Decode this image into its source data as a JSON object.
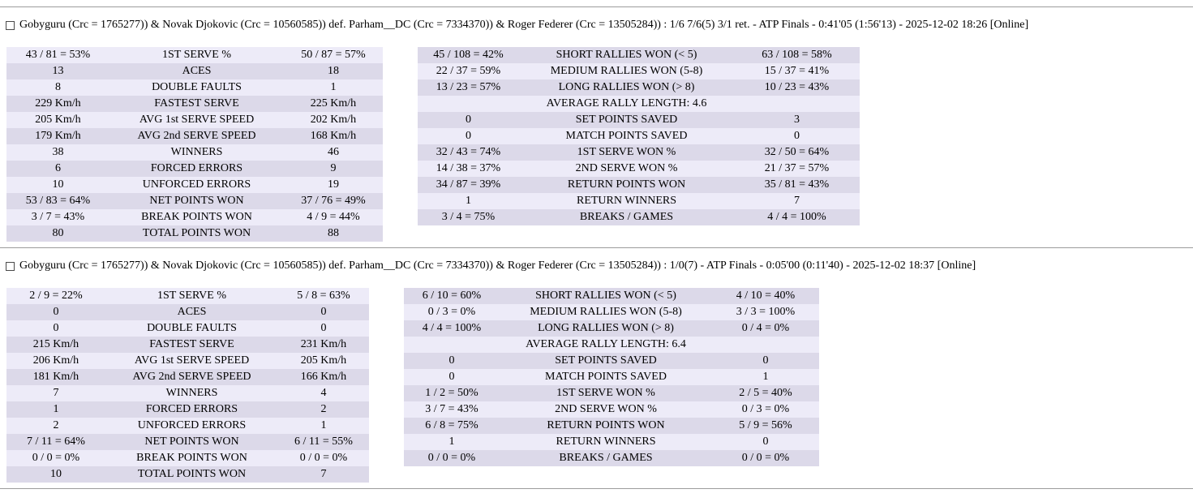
{
  "page": {
    "background": "#ffffff",
    "separator_color": "#9c9c9c",
    "row_light": "#edebf8",
    "row_dark": "#dcd9e9",
    "text_color": "#000000"
  },
  "matches": [
    {
      "header": "Gobyguru (Crc = 1765277)) & Novak Djokovic (Crc = 10560585)) def. Parham__DC (Crc = 7334370)) & Roger Federer (Crc = 13505284)) : 1/6 7/6(5) 3/1 ret. - ATP Finals - 0:41'05 (1:56'13) - 2025-12-02 18:26 [Online]",
      "checkbox_checked": false,
      "serve_table": [
        [
          "43 / 81 = 53%",
          "1ST SERVE %",
          "50 / 87 = 57%"
        ],
        [
          "13",
          "ACES",
          "18"
        ],
        [
          "8",
          "DOUBLE FAULTS",
          "1"
        ],
        [
          "229 Km/h",
          "FASTEST SERVE",
          "225 Km/h"
        ],
        [
          "205 Km/h",
          "AVG 1st SERVE SPEED",
          "202 Km/h"
        ],
        [
          "179 Km/h",
          "AVG 2nd SERVE SPEED",
          "168 Km/h"
        ],
        [
          "38",
          "WINNERS",
          "46"
        ],
        [
          "6",
          "FORCED ERRORS",
          "9"
        ],
        [
          "10",
          "UNFORCED ERRORS",
          "19"
        ],
        [
          "53 / 83 = 64%",
          "NET POINTS WON",
          "37 / 76 = 49%"
        ],
        [
          "3 / 7 = 43%",
          "BREAK POINTS WON",
          "4 / 9 = 44%"
        ],
        [
          "80",
          "TOTAL POINTS WON",
          "88"
        ]
      ],
      "rally_table": [
        [
          "45 / 108 = 42%",
          "SHORT RALLIES WON (< 5)",
          "63 / 108 = 58%"
        ],
        [
          "22 / 37 = 59%",
          "MEDIUM RALLIES WON (5-8)",
          "15 / 37 = 41%"
        ],
        [
          "13 / 23 = 57%",
          "LONG RALLIES WON (> 8)",
          "10 / 23 = 43%"
        ],
        [
          "",
          "AVERAGE RALLY LENGTH: 4.6",
          ""
        ],
        [
          "0",
          "SET POINTS SAVED",
          "3"
        ],
        [
          "0",
          "MATCH POINTS SAVED",
          "0"
        ],
        [
          "32 / 43 = 74%",
          "1ST SERVE WON %",
          "32 / 50 = 64%"
        ],
        [
          "14 / 38 = 37%",
          "2ND SERVE WON %",
          "21 / 37 = 57%"
        ],
        [
          "34 / 87 = 39%",
          "RETURN POINTS WON",
          "35 / 81 = 43%"
        ],
        [
          "1",
          "RETURN WINNERS",
          "7"
        ],
        [
          "3 / 4 = 75%",
          "BREAKS / GAMES",
          "4 / 4 = 100%"
        ]
      ]
    },
    {
      "header": "Gobyguru (Crc = 1765277)) & Novak Djokovic (Crc = 10560585)) def. Parham__DC (Crc = 7334370)) & Roger Federer (Crc = 13505284)) : 1/0(7) - ATP Finals - 0:05'00 (0:11'40) - 2025-12-02 18:37 [Online]",
      "checkbox_checked": false,
      "serve_table": [
        [
          "2 / 9 = 22%",
          "1ST SERVE %",
          "5 / 8 = 63%"
        ],
        [
          "0",
          "ACES",
          "0"
        ],
        [
          "0",
          "DOUBLE FAULTS",
          "0"
        ],
        [
          "215 Km/h",
          "FASTEST SERVE",
          "231 Km/h"
        ],
        [
          "206 Km/h",
          "AVG 1st SERVE SPEED",
          "205 Km/h"
        ],
        [
          "181 Km/h",
          "AVG 2nd SERVE SPEED",
          "166 Km/h"
        ],
        [
          "7",
          "WINNERS",
          "4"
        ],
        [
          "1",
          "FORCED ERRORS",
          "2"
        ],
        [
          "2",
          "UNFORCED ERRORS",
          "1"
        ],
        [
          "7 / 11 = 64%",
          "NET POINTS WON",
          "6 / 11 = 55%"
        ],
        [
          "0 / 0 = 0%",
          "BREAK POINTS WON",
          "0 / 0 = 0%"
        ],
        [
          "10",
          "TOTAL POINTS WON",
          "7"
        ]
      ],
      "rally_table": [
        [
          "6 / 10 = 60%",
          "SHORT RALLIES WON (< 5)",
          "4 / 10 = 40%"
        ],
        [
          "0 / 3 = 0%",
          "MEDIUM RALLIES WON (5-8)",
          "3 / 3 = 100%"
        ],
        [
          "4 / 4 = 100%",
          "LONG RALLIES WON (> 8)",
          "0 / 4 = 0%"
        ],
        [
          "",
          "AVERAGE RALLY LENGTH: 6.4",
          ""
        ],
        [
          "0",
          "SET POINTS SAVED",
          "0"
        ],
        [
          "0",
          "MATCH POINTS SAVED",
          "1"
        ],
        [
          "1 / 2 = 50%",
          "1ST SERVE WON %",
          "2 / 5 = 40%"
        ],
        [
          "3 / 7 = 43%",
          "2ND SERVE WON %",
          "0 / 3 = 0%"
        ],
        [
          "6 / 8 = 75%",
          "RETURN POINTS WON",
          "5 / 9 = 56%"
        ],
        [
          "1",
          "RETURN WINNERS",
          "0"
        ],
        [
          "0 / 0 = 0%",
          "BREAKS / GAMES",
          "0 / 0 = 0%"
        ]
      ]
    }
  ]
}
